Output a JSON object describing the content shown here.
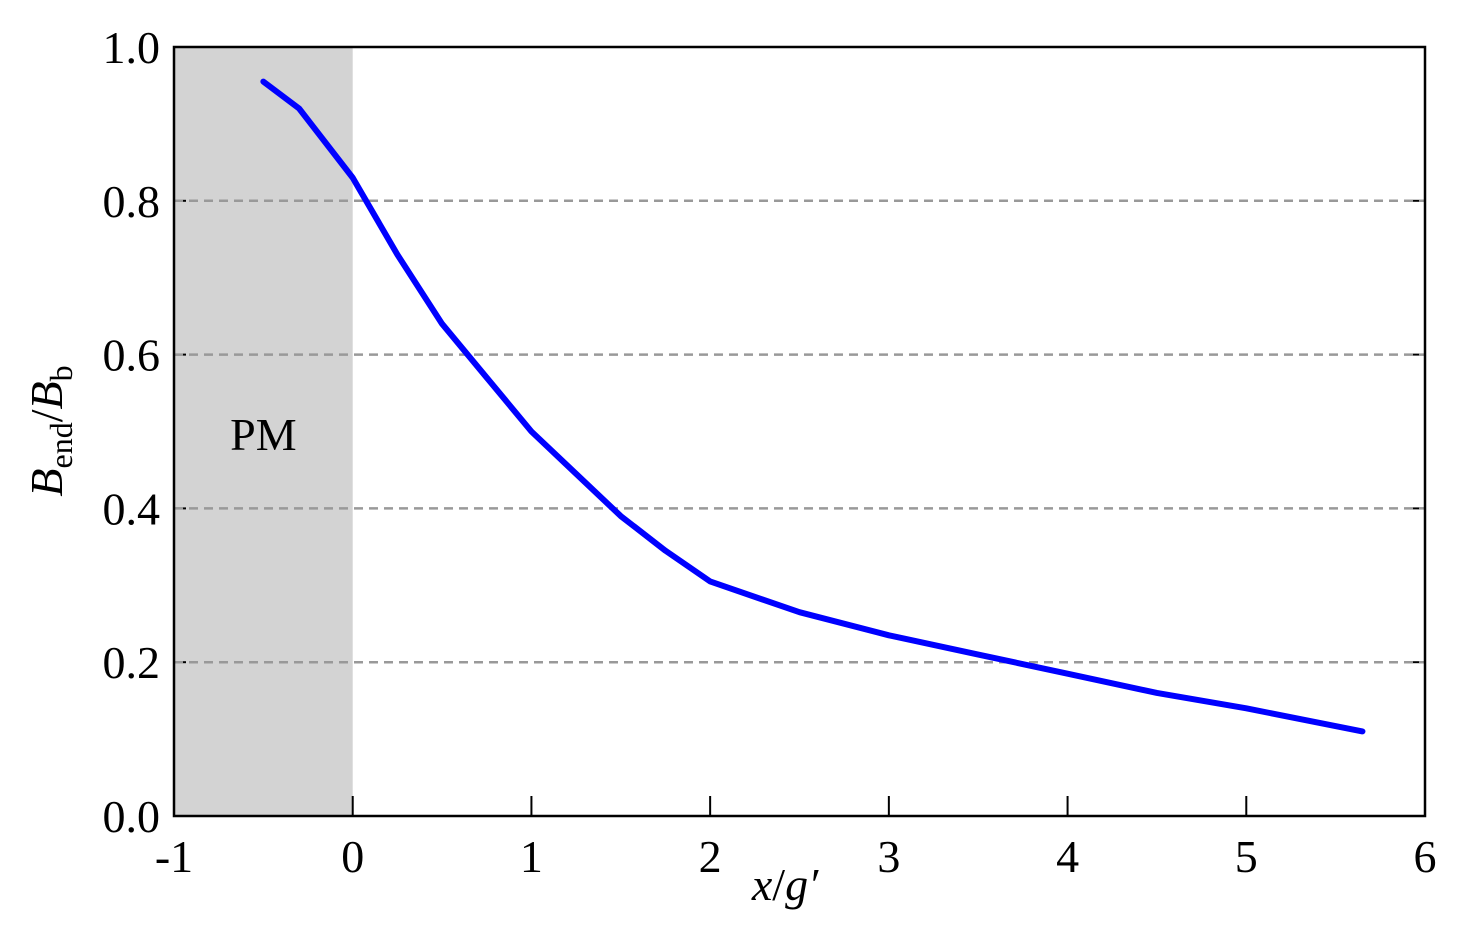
{
  "chart_data": {
    "type": "line",
    "xlabel": [
      "x",
      "/",
      "g",
      "′"
    ],
    "ylabel": [
      "B",
      "end",
      "/",
      "B",
      "b"
    ],
    "x": [
      -0.5,
      -0.3,
      0,
      0.25,
      0.5,
      0.75,
      1,
      1.25,
      1.5,
      1.75,
      2,
      2.5,
      3,
      3.5,
      4,
      4.5,
      5,
      5.65
    ],
    "series": [
      {
        "color": "#0000ff",
        "values": [
          0.955,
          0.92,
          0.83,
          0.73,
          0.64,
          0.57,
          0.5,
          0.445,
          0.39,
          0.345,
          0.305,
          0.265,
          0.235,
          0.21,
          0.185,
          0.16,
          0.14,
          0.11
        ]
      }
    ],
    "xlim": [
      -1,
      6
    ],
    "xticks": [
      -1,
      0,
      1,
      2,
      3,
      4,
      5,
      6
    ],
    "ylim": [
      0,
      1
    ],
    "yticks": [
      {
        "value": 0,
        "label": "0.0"
      },
      0.2,
      0.4,
      0.6,
      0.8,
      {
        "value": 1,
        "label": "1.0"
      }
    ],
    "grid": true,
    "shaded_region": {
      "xlim": [
        -1,
        0
      ],
      "label": "PM",
      "color": "#d3d3d3"
    }
  }
}
